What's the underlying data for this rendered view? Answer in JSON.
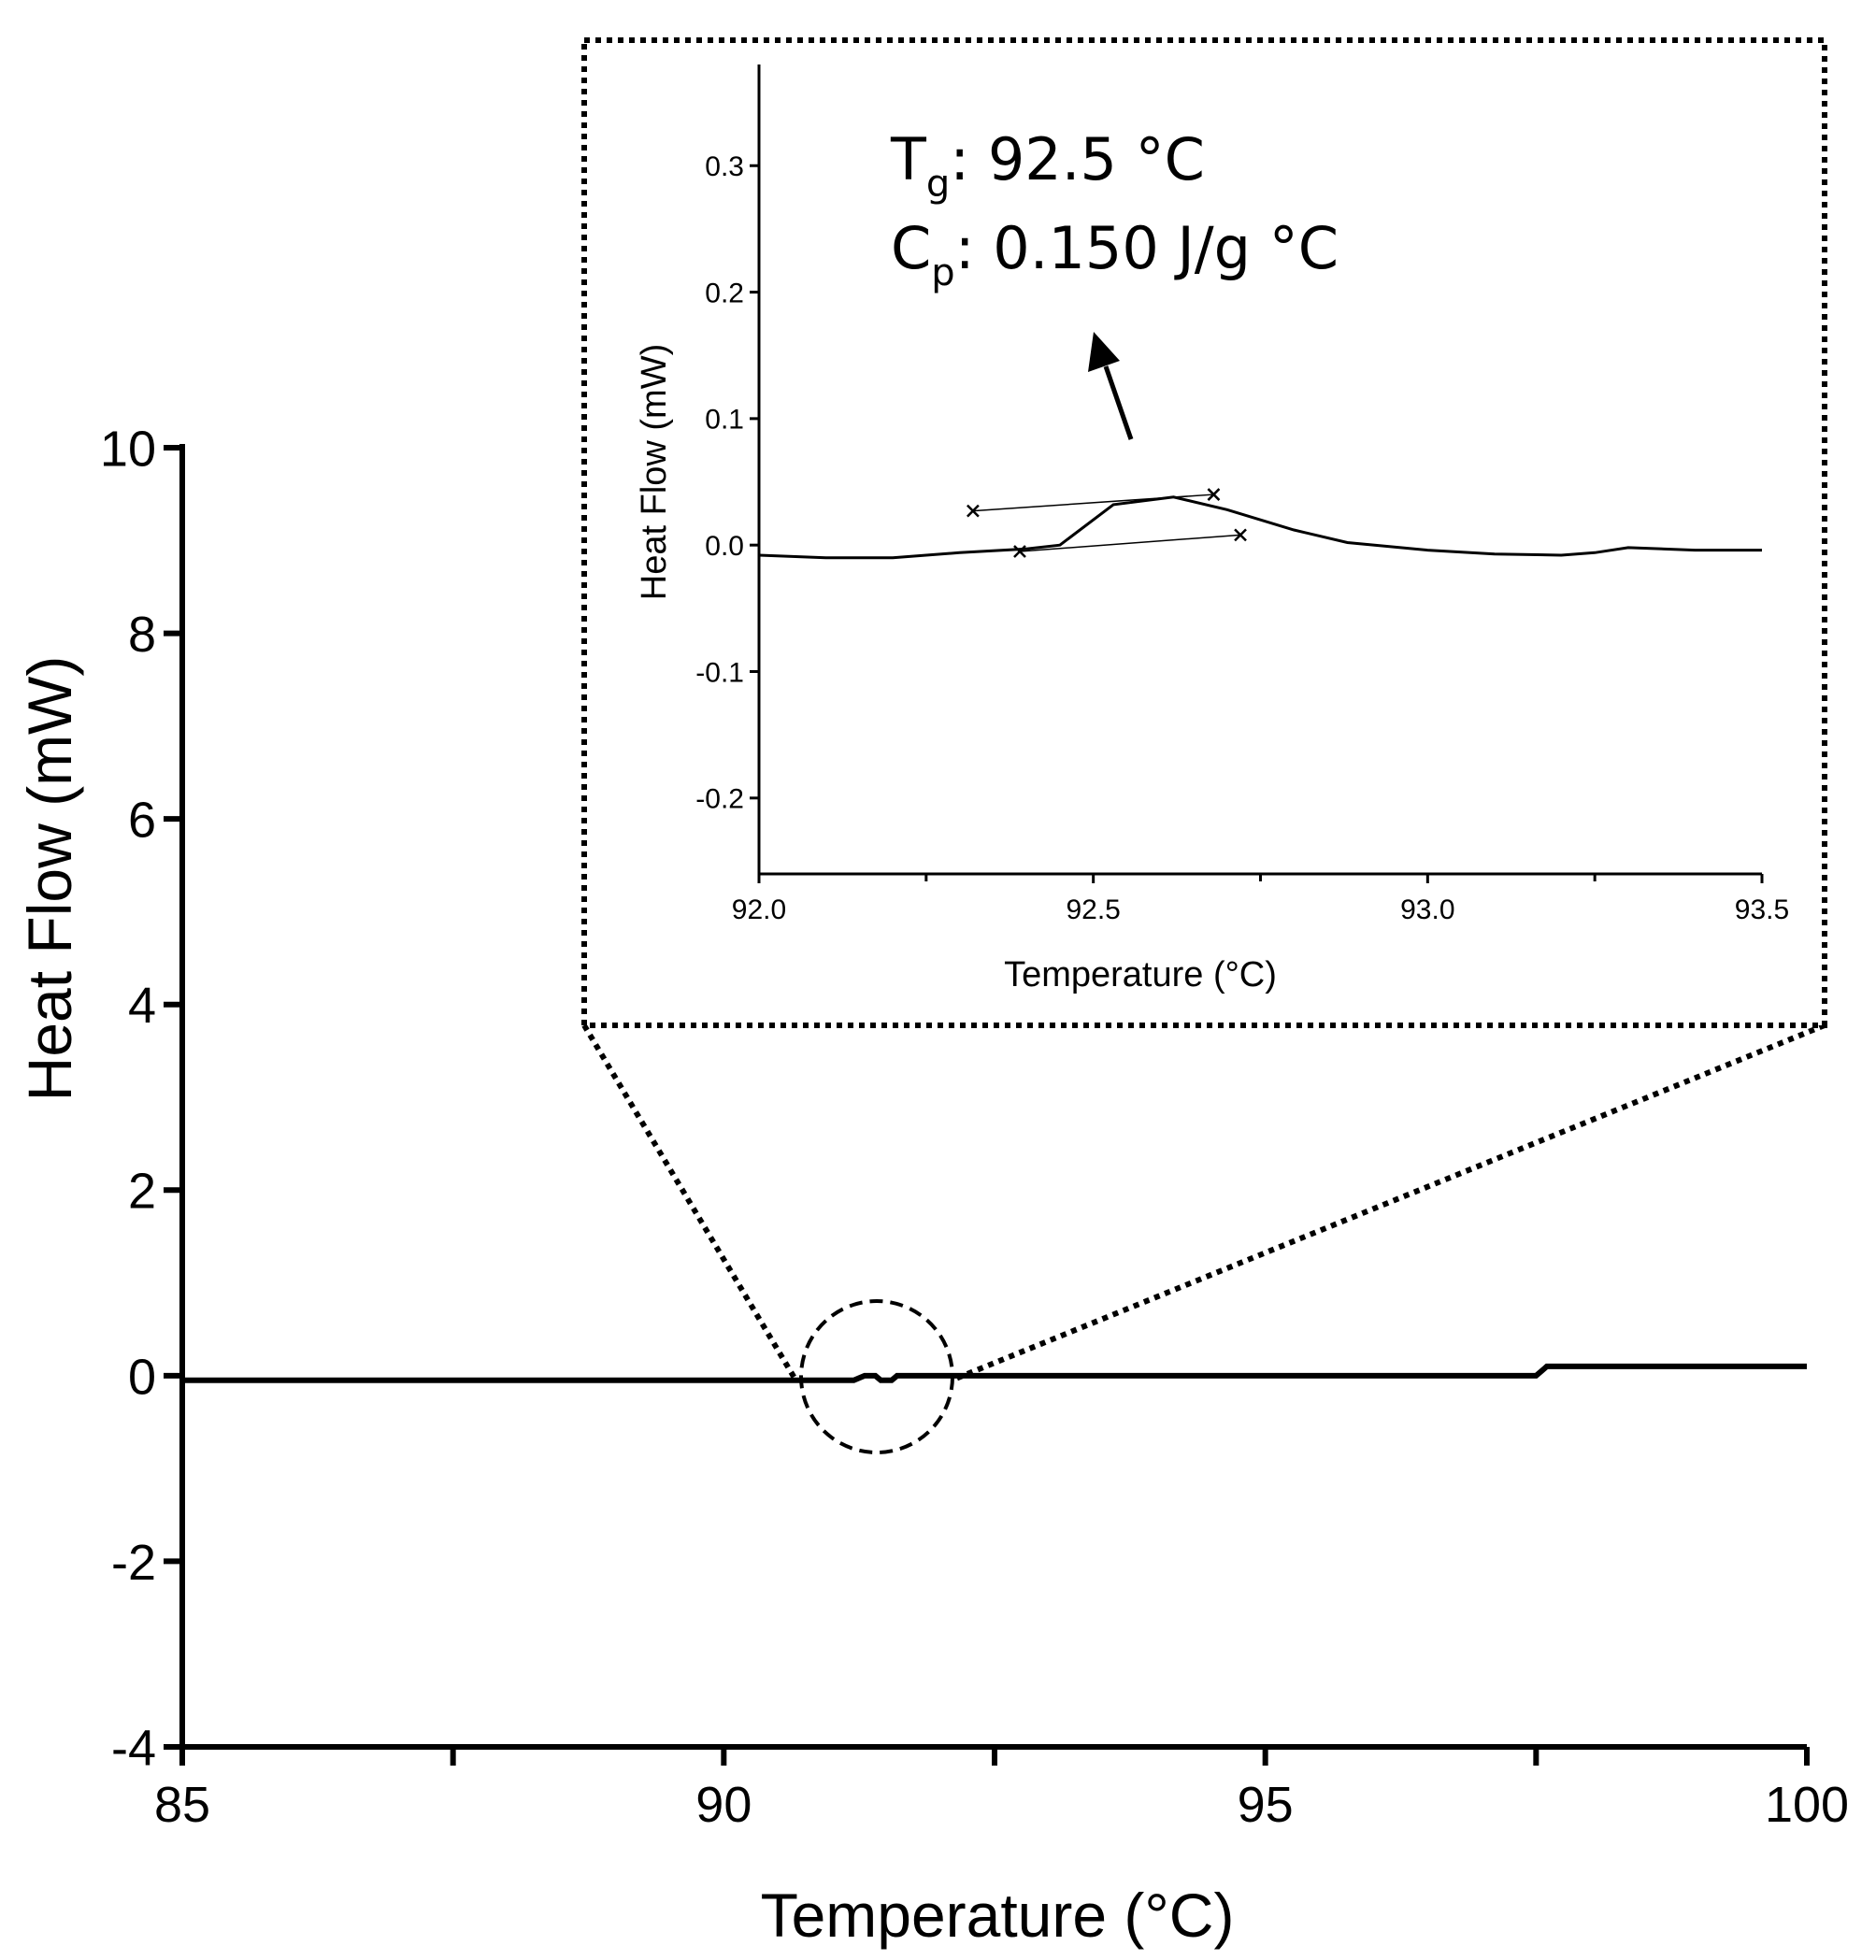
{
  "chart_data": [
    {
      "type": "line",
      "xlabel": "Temperature (°C)",
      "ylabel": "Heat Flow (mW)",
      "xlim": [
        85,
        100
      ],
      "ylim": [
        -4,
        10
      ],
      "xticks": [
        85,
        90,
        95,
        100
      ],
      "xtick_labels": [
        "85",
        "90",
        "95",
        "100"
      ],
      "yticks": [
        -4,
        -2,
        0,
        2,
        4,
        6,
        8,
        10
      ],
      "ytick_labels": [
        "-4",
        "-2",
        "0",
        "2",
        "4",
        "6",
        "8",
        "10"
      ],
      "grid": false,
      "series": [
        {
          "x": [
            85,
            89.0,
            91.2,
            91.3,
            91.4,
            91.45,
            91.55,
            91.6,
            91.65,
            91.8,
            97.5,
            97.6,
            100
          ],
          "y": [
            -0.05,
            -0.05,
            -0.05,
            0.0,
            0.0,
            -0.05,
            -0.05,
            0.0,
            0.0,
            0.0,
            0.0,
            0.1,
            0.1
          ]
        }
      ],
      "highlight": "dashed circle around ~91.4 °C connected by dotted lines to the inset"
    },
    {
      "type": "line",
      "role": "inset",
      "xlabel": "Temperature (°C)",
      "ylabel": "Heat Flow (mW)",
      "xlim": [
        92.0,
        93.5
      ],
      "ylim": [
        -0.26,
        0.38
      ],
      "xticks": [
        92.0,
        92.5,
        93.0,
        93.5
      ],
      "xtick_labels": [
        "92.0",
        "92.5",
        "93.0",
        "93.5"
      ],
      "yticks": [
        -0.2,
        -0.1,
        0.0,
        0.1,
        0.2,
        0.3
      ],
      "ytick_labels": [
        "-0.2",
        "-0.1",
        "0.0",
        "0.1",
        "0.2",
        "0.3"
      ],
      "grid": false,
      "series": [
        {
          "x": [
            92.0,
            92.1,
            92.2,
            92.3,
            92.4,
            92.45,
            92.53,
            92.62,
            92.7,
            92.8,
            92.88,
            93.0,
            93.1,
            93.2,
            93.25,
            93.3,
            93.4,
            93.5
          ],
          "y": [
            -0.008,
            -0.01,
            -0.01,
            -0.006,
            -0.003,
            0.0,
            0.032,
            0.038,
            0.028,
            0.012,
            0.002,
            -0.004,
            -0.007,
            -0.008,
            -0.006,
            -0.002,
            -0.004,
            -0.004
          ]
        }
      ],
      "tangent_lines": [
        {
          "x": [
            92.32,
            92.68
          ],
          "y": [
            0.027,
            0.04
          ]
        },
        {
          "x": [
            92.39,
            92.72
          ],
          "y": [
            -0.005,
            0.008
          ]
        }
      ],
      "markers": [
        {
          "x": 92.32,
          "y": 0.027,
          "symbol": "x"
        },
        {
          "x": 92.68,
          "y": 0.04,
          "symbol": "x"
        },
        {
          "x": 92.39,
          "y": -0.005,
          "symbol": "x"
        },
        {
          "x": 92.72,
          "y": 0.008,
          "symbol": "x"
        }
      ],
      "annotations": {
        "tg": {
          "symbol": "T",
          "sub": "g",
          "value": ": 92.5 °C"
        },
        "cp": {
          "symbol": "C",
          "sub": "p",
          "value": ": 0.150 J/g °C"
        }
      }
    }
  ]
}
